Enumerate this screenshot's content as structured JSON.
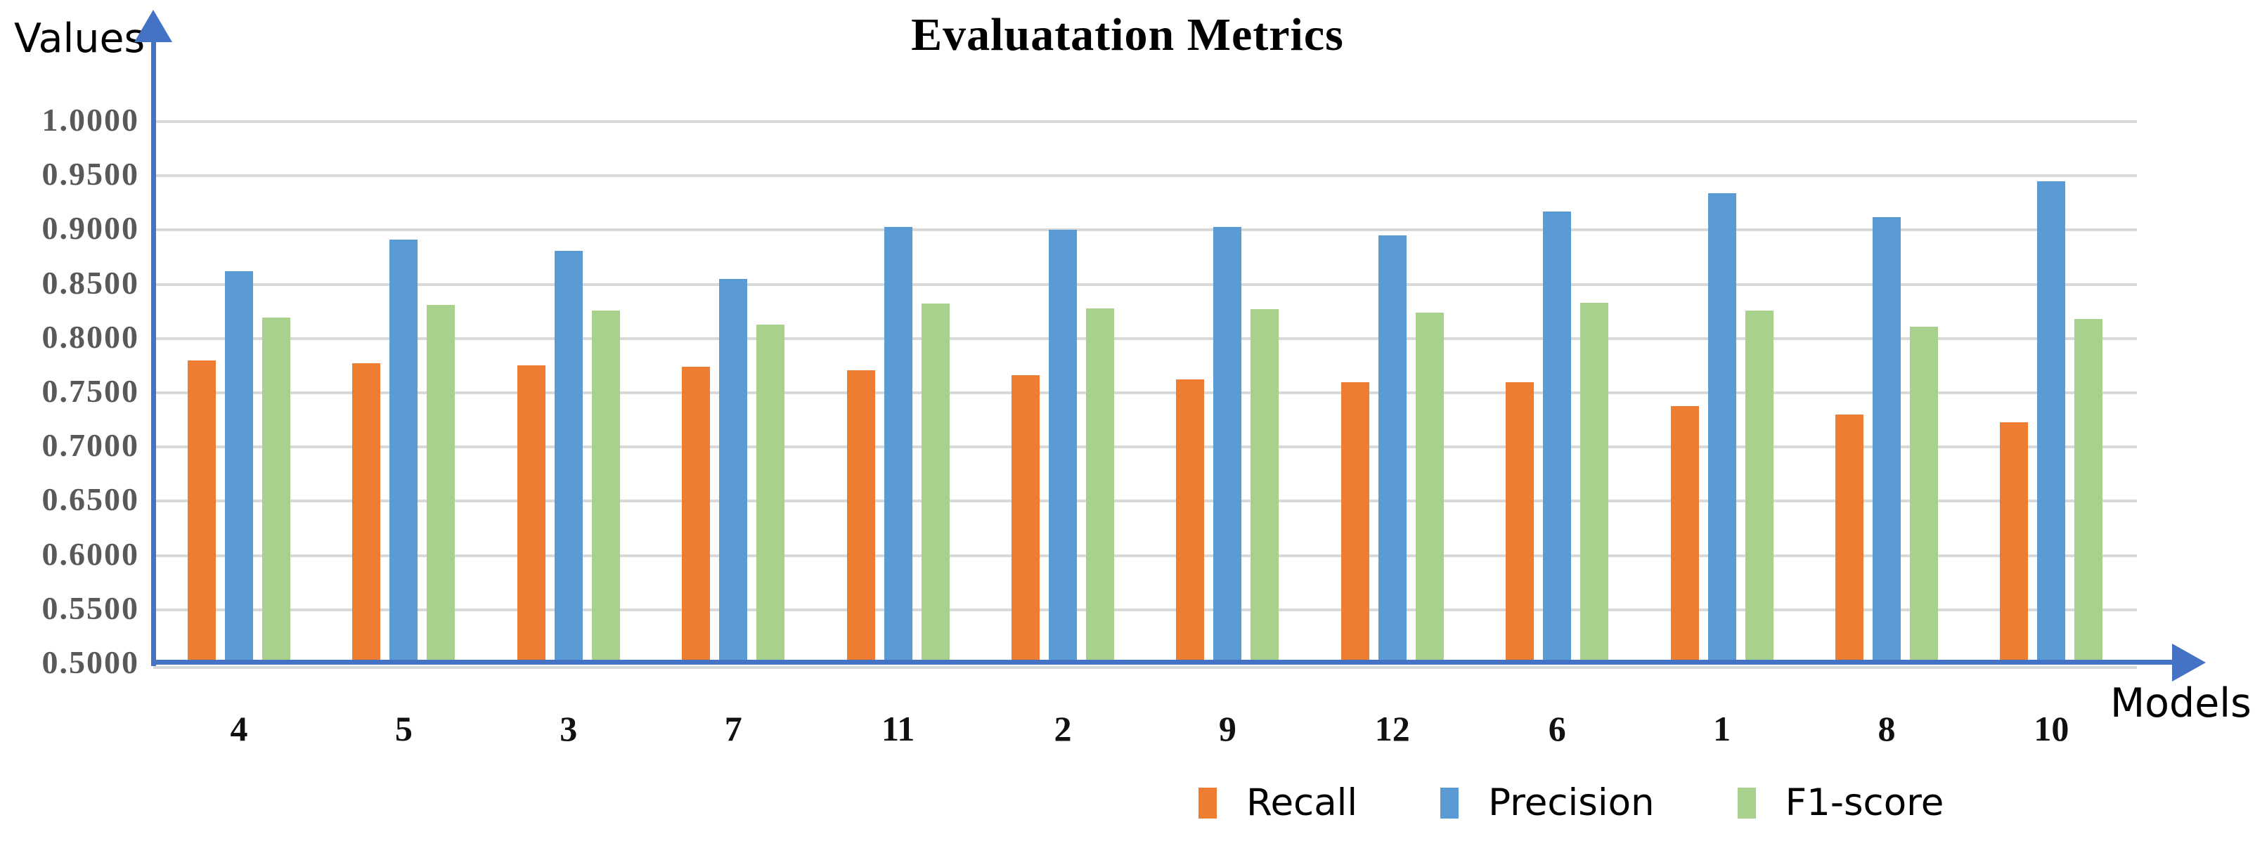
{
  "title": "Evaluatation Metrics",
  "y_axis": {
    "label": "Values",
    "ticks": [
      "1.0000",
      "0.9500",
      "0.9000",
      "0.8500",
      "0.8000",
      "0.7500",
      "0.7000",
      "0.6500",
      "0.6000",
      "0.5500",
      "0.5000"
    ],
    "tick_values": [
      1.0,
      0.95,
      0.9,
      0.85,
      0.8,
      0.75,
      0.7,
      0.65,
      0.6,
      0.55,
      0.5
    ]
  },
  "x_axis": {
    "label": "Models"
  },
  "legend": {
    "items": [
      {
        "label": "Recall",
        "color": "#ED7D31"
      },
      {
        "label": "Precision",
        "color": "#5B9BD5"
      },
      {
        "label": "F1-score",
        "color": "#A9D18E"
      }
    ]
  },
  "colors": {
    "axis": "#4472C4",
    "gridline": "#D9D9D9",
    "tick_text": "#595959",
    "recall": "#ED7D31",
    "precision": "#5B9BD5",
    "f1_score": "#A9D18E"
  },
  "chart_data": {
    "type": "bar",
    "title": "Evaluatation Metrics",
    "xlabel": "Models",
    "ylabel": "Values",
    "ylim": [
      0.5,
      1.0
    ],
    "ytick_step": 0.05,
    "grid": true,
    "legend_position": "bottom",
    "categories": [
      "4",
      "5",
      "3",
      "7",
      "11",
      "2",
      "9",
      "12",
      "6",
      "1",
      "8",
      "10"
    ],
    "series": [
      {
        "name": "Recall",
        "color": "#ED7D31",
        "values": [
          0.78,
          0.777,
          0.775,
          0.774,
          0.771,
          0.766,
          0.762,
          0.76,
          0.76,
          0.738,
          0.73,
          0.723
        ]
      },
      {
        "name": "Precision",
        "color": "#5B9BD5",
        "values": [
          0.862,
          0.891,
          0.881,
          0.855,
          0.903,
          0.9,
          0.903,
          0.895,
          0.917,
          0.934,
          0.912,
          0.945
        ]
      },
      {
        "name": "F1-score",
        "color": "#A9D18E",
        "values": [
          0.819,
          0.831,
          0.826,
          0.813,
          0.832,
          0.828,
          0.827,
          0.824,
          0.833,
          0.826,
          0.811,
          0.818
        ]
      }
    ]
  }
}
